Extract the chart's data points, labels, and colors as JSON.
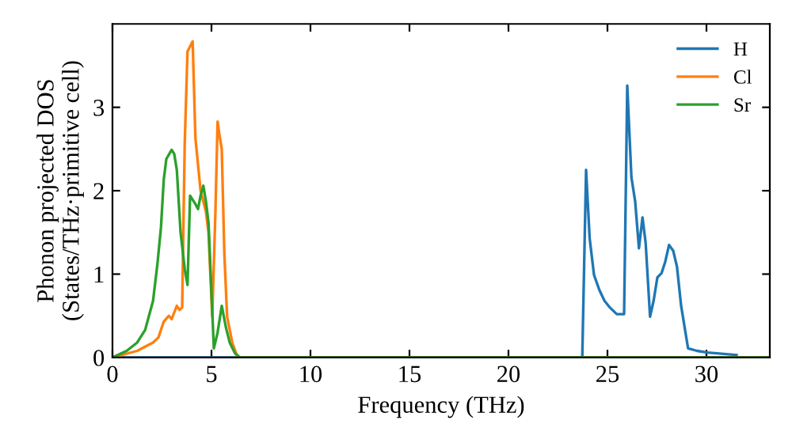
{
  "chart_data": {
    "type": "line",
    "xlabel": "Frequency (THz)",
    "ylabel": "Phonon projected DOS\n(States/THz·primitive cell)",
    "xlim": [
      0,
      33.2
    ],
    "ylim": [
      0,
      4
    ],
    "xticks": [
      0,
      5,
      10,
      15,
      20,
      25,
      30
    ],
    "yticks": [
      0,
      1,
      2,
      3
    ],
    "legend": "top right",
    "grid": false,
    "marker": "none",
    "line_style": "solid",
    "series": [
      {
        "name": "H",
        "color": "#1f77b4",
        "x": [
          0,
          23.7,
          23.73,
          23.92,
          24.1,
          24.32,
          24.59,
          24.85,
          25.12,
          25.47,
          25.84,
          26.0,
          26.21,
          26.4,
          26.59,
          26.77,
          26.93,
          27.15,
          27.33,
          27.52,
          27.73,
          27.92,
          28.11,
          28.32,
          28.51,
          28.72,
          29.07,
          29.52,
          30.05,
          31.52
        ],
        "values": [
          0,
          0,
          0.02,
          2.25,
          1.43,
          0.99,
          0.81,
          0.68,
          0.6,
          0.52,
          0.52,
          3.26,
          2.16,
          1.87,
          1.31,
          1.68,
          1.37,
          0.49,
          0.68,
          0.96,
          1.01,
          1.15,
          1.35,
          1.28,
          1.09,
          0.62,
          0.11,
          0.08,
          0.06,
          0.03
        ]
      },
      {
        "name": "Cl",
        "color": "#ff7f0e",
        "x": [
          0,
          1.25,
          2.05,
          2.32,
          2.59,
          2.85,
          2.99,
          3.12,
          3.25,
          3.39,
          3.52,
          3.65,
          3.79,
          3.92,
          4.05,
          4.19,
          4.45,
          4.72,
          4.85,
          5.04,
          5.2,
          5.31,
          5.39,
          5.52,
          5.65,
          5.79,
          6.05,
          6.32,
          33.2
        ],
        "values": [
          0,
          0.08,
          0.18,
          0.24,
          0.43,
          0.5,
          0.46,
          0.54,
          0.62,
          0.57,
          0.6,
          2.57,
          3.67,
          3.73,
          3.79,
          2.63,
          2.0,
          1.75,
          1.5,
          0.49,
          1.75,
          2.83,
          2.69,
          2.5,
          1.25,
          0.49,
          0.18,
          0,
          0
        ]
      },
      {
        "name": "Sr",
        "color": "#2ca02c",
        "x": [
          0,
          0.72,
          1.25,
          1.65,
          2.05,
          2.27,
          2.45,
          2.59,
          2.72,
          2.99,
          3.12,
          3.25,
          3.44,
          3.65,
          3.79,
          3.92,
          4.19,
          4.32,
          4.45,
          4.59,
          4.72,
          4.85,
          5.12,
          5.31,
          5.52,
          5.73,
          5.92,
          6.19,
          6.45,
          33.2
        ],
        "values": [
          0,
          0.08,
          0.18,
          0.33,
          0.68,
          1.12,
          1.56,
          2.13,
          2.38,
          2.49,
          2.44,
          2.25,
          1.5,
          1.06,
          0.87,
          1.94,
          1.84,
          1.78,
          1.94,
          2.06,
          1.87,
          1.62,
          0.11,
          0.3,
          0.62,
          0.36,
          0.18,
          0.05,
          0,
          0
        ]
      }
    ]
  }
}
